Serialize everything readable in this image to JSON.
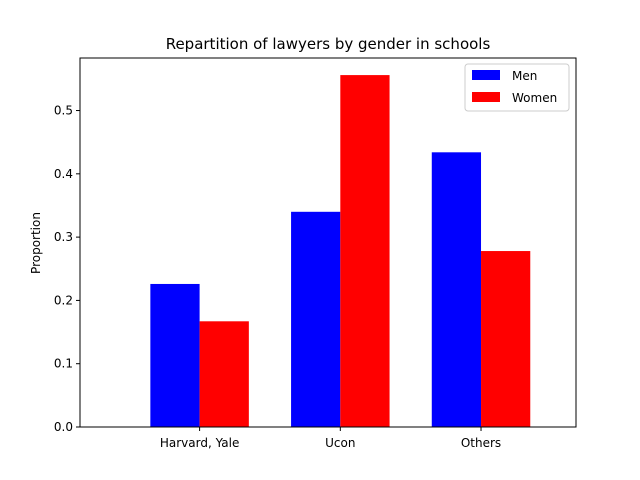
{
  "chart_data": {
    "type": "bar",
    "title": "Repartition of lawyers by gender in schools",
    "xlabel": "",
    "ylabel": "Proportion",
    "categories": [
      "Harvard, Yale",
      "Ucon",
      "Others"
    ],
    "series": [
      {
        "name": "Men",
        "color": "#0000ff",
        "values": [
          0.226,
          0.34,
          0.434
        ]
      },
      {
        "name": "Women",
        "color": "#ff0000",
        "values": [
          0.167,
          0.556,
          0.278
        ]
      }
    ],
    "ylim": [
      0,
      0.583
    ],
    "yticks": [
      "0.0",
      "0.1",
      "0.2",
      "0.3",
      "0.4",
      "0.5"
    ],
    "grid": false,
    "legend": "upper-right"
  }
}
